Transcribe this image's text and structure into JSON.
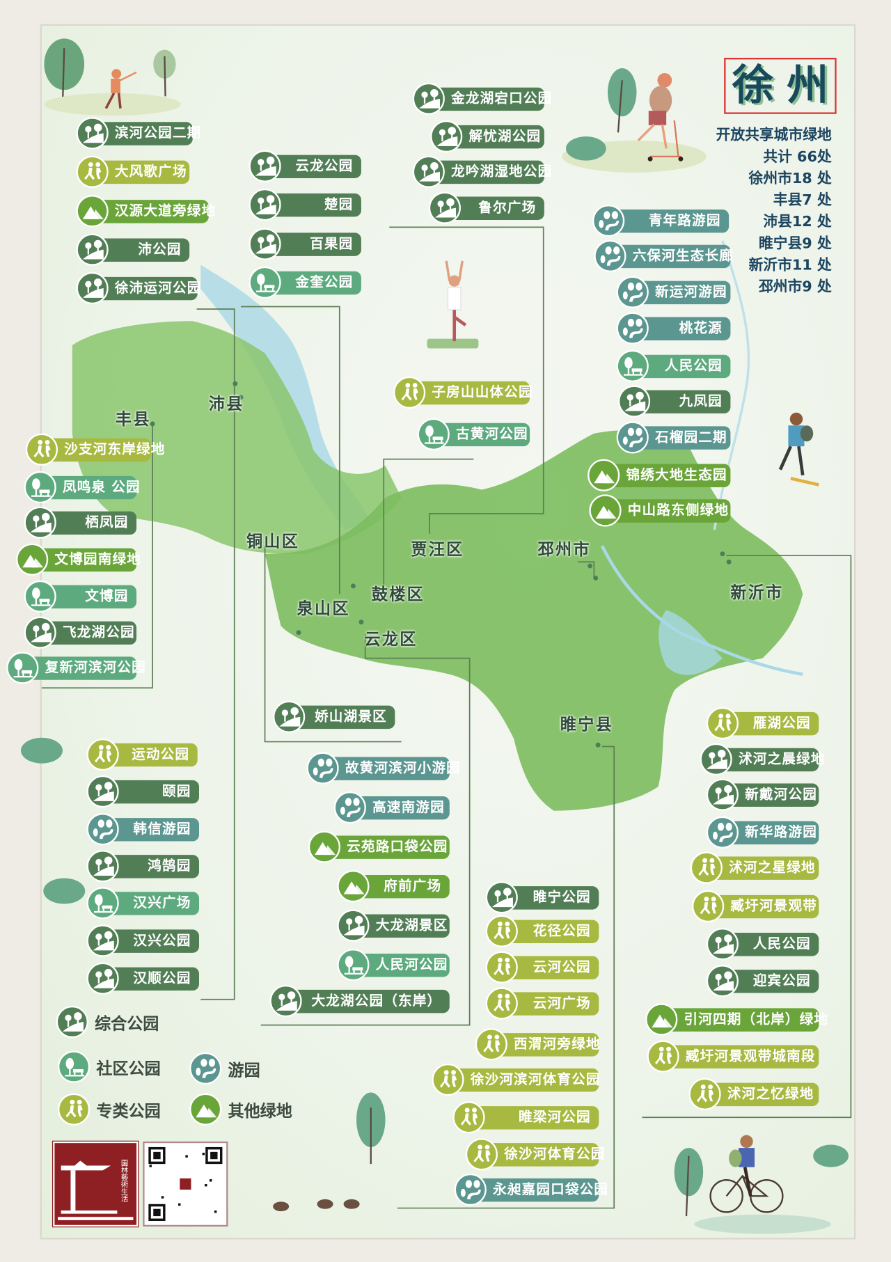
{
  "title": {
    "chars": [
      "徐",
      "州"
    ]
  },
  "stats": [
    "开放共享城市绿地",
    "共计 66处",
    "徐州市18 处",
    "丰县7 处",
    "沛县12 处",
    "睢宁县9 处",
    "新沂市11 处",
    "邳州市9 处"
  ],
  "colors": {
    "comprehensive": "#527e56",
    "community": "#5daa7f",
    "garden": "#5b9690",
    "specialty": "#a7b940",
    "other": "#6aa53a",
    "title": "#184a5c",
    "stats": "#1c4560",
    "map_green": "#7fbf62",
    "water": "#a9d8e6"
  },
  "districts": [
    "丰县",
    "沛县",
    "铜山区",
    "贾汪区",
    "邳州市",
    "新沂市",
    "泉山区",
    "鼓楼区",
    "云龙区",
    "睢宁县"
  ],
  "legend": [
    {
      "type": "comprehensive",
      "label": "综合公园",
      "icon": "trees-hill-icon"
    },
    {
      "type": "community",
      "label": "社区公园",
      "icon": "tree-bench-icon"
    },
    {
      "type": "garden",
      "label": "游园",
      "icon": "trees-path-icon"
    },
    {
      "type": "specialty",
      "label": "专类公园",
      "icon": "runners-icon"
    },
    {
      "type": "other",
      "label": "其他绿地",
      "icon": "mountain-icon"
    }
  ],
  "groups": [
    {
      "items": [
        {
          "name": "滨河公园二期",
          "type": "comprehensive"
        },
        {
          "name": "大风歌广场",
          "type": "specialty"
        },
        {
          "name": "汉源大道旁绿地",
          "type": "other"
        },
        {
          "name": "沛公园",
          "type": "comprehensive"
        },
        {
          "name": "徐沛运河公园",
          "type": "comprehensive"
        }
      ]
    },
    {
      "items": [
        {
          "name": "云龙公园",
          "type": "comprehensive"
        },
        {
          "name": "楚园",
          "type": "comprehensive"
        },
        {
          "name": "百果园",
          "type": "comprehensive"
        },
        {
          "name": "金奎公园",
          "type": "community"
        }
      ]
    },
    {
      "items": [
        {
          "name": "金龙湖宕口公园",
          "type": "comprehensive"
        },
        {
          "name": "解忧湖公园",
          "type": "comprehensive"
        },
        {
          "name": "龙吟湖湿地公园",
          "type": "comprehensive"
        },
        {
          "name": "鲁尔广场",
          "type": "comprehensive"
        }
      ]
    },
    {
      "items": [
        {
          "name": "青年路游园",
          "type": "garden"
        },
        {
          "name": "六保河生态长廊",
          "type": "garden"
        },
        {
          "name": "新运河游园",
          "type": "garden"
        },
        {
          "name": "桃花源",
          "type": "garden"
        },
        {
          "name": "人民公园",
          "type": "community"
        },
        {
          "name": "九凤园",
          "type": "comprehensive"
        },
        {
          "name": "石榴园二期",
          "type": "garden"
        },
        {
          "name": "锦绣大地生态园",
          "type": "other"
        },
        {
          "name": "中山路东侧绿地",
          "type": "other"
        }
      ]
    },
    {
      "items": [
        {
          "name": "子房山山体公园",
          "type": "specialty"
        },
        {
          "name": "古黄河公园",
          "type": "community"
        }
      ]
    },
    {
      "items": [
        {
          "name": "沙支河东岸绿地",
          "type": "specialty"
        },
        {
          "name": "凤鸣泉 公园",
          "type": "community"
        },
        {
          "name": "栖凤园",
          "type": "comprehensive"
        },
        {
          "name": "文博园南绿地",
          "type": "other"
        },
        {
          "name": "文博园",
          "type": "community"
        },
        {
          "name": "飞龙湖公园",
          "type": "comprehensive"
        },
        {
          "name": "复新河滨河公园",
          "type": "community"
        }
      ]
    },
    {
      "items": [
        {
          "name": "娇山湖景区",
          "type": "comprehensive"
        }
      ]
    },
    {
      "items": [
        {
          "name": "运动公园",
          "type": "specialty"
        },
        {
          "name": "颐园",
          "type": "comprehensive"
        },
        {
          "name": "韩信游园",
          "type": "garden"
        },
        {
          "name": "鸿鹄园",
          "type": "comprehensive"
        },
        {
          "name": "汉兴广场",
          "type": "community"
        },
        {
          "name": "汉兴公园",
          "type": "comprehensive"
        },
        {
          "name": "汉顺公园",
          "type": "comprehensive"
        }
      ]
    },
    {
      "items": [
        {
          "name": "故黄河滨河小游园",
          "type": "garden"
        },
        {
          "name": "高速南游园",
          "type": "garden"
        },
        {
          "name": "云苑路口袋公园",
          "type": "other"
        },
        {
          "name": "府前广场",
          "type": "other"
        },
        {
          "name": "大龙湖景区",
          "type": "comprehensive"
        },
        {
          "name": "人民河公园",
          "type": "community"
        },
        {
          "name": "大龙湖公园（东岸）",
          "type": "comprehensive"
        }
      ]
    },
    {
      "items": [
        {
          "name": "睢宁公园",
          "type": "comprehensive"
        },
        {
          "name": "花径公园",
          "type": "specialty"
        },
        {
          "name": "云河公园",
          "type": "specialty"
        },
        {
          "name": "云河广场",
          "type": "specialty"
        },
        {
          "name": "西渭河旁绿地",
          "type": "specialty"
        },
        {
          "name": "徐沙河滨河体育公园",
          "type": "specialty"
        },
        {
          "name": "睢梁河公园",
          "type": "specialty"
        },
        {
          "name": "徐沙河体育公园",
          "type": "specialty"
        },
        {
          "name": "永昶嘉园口袋公园",
          "type": "garden"
        }
      ]
    },
    {
      "items": [
        {
          "name": "雁湖公园",
          "type": "specialty"
        },
        {
          "name": "沭河之晨绿地",
          "type": "comprehensive"
        },
        {
          "name": "新戴河公园",
          "type": "comprehensive"
        },
        {
          "name": "新华路游园",
          "type": "garden"
        },
        {
          "name": "沭河之星绿地",
          "type": "specialty"
        },
        {
          "name": "臧圩河景观带",
          "type": "specialty"
        },
        {
          "name": "人民公园",
          "type": "comprehensive"
        },
        {
          "name": "迎宾公园",
          "type": "comprehensive"
        },
        {
          "name": "引河四期（北岸）绿地",
          "type": "other"
        },
        {
          "name": "臧圩河景观带城南段",
          "type": "specialty"
        },
        {
          "name": "沭河之忆绿地",
          "type": "specialty"
        }
      ]
    }
  ],
  "logo": {
    "text": "园林艺术生活"
  },
  "qr_code": {
    "icon": "qr-code-icon"
  }
}
